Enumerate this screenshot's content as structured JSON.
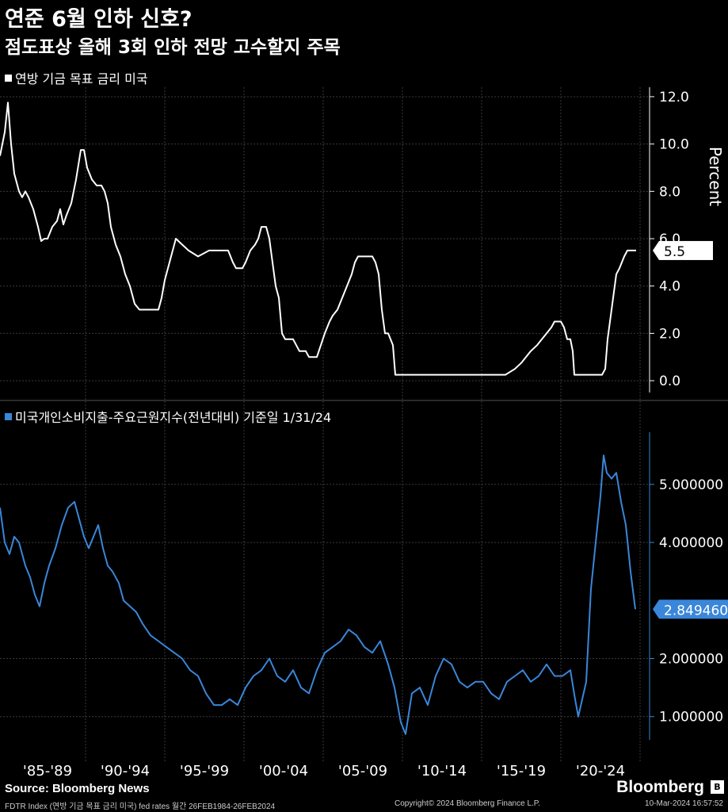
{
  "header": {
    "title": "연준 6월 인하 신호?",
    "subtitle": "점도표상 올해 3회 인하 전망 고수할지 주목"
  },
  "chart_data": [
    {
      "type": "line",
      "legend": "연방 기금 목표 금리 미국",
      "color": "#ffffff",
      "ylabel": "Percent",
      "ylim": [
        -0.5,
        12.4
      ],
      "yticks": [
        "0.0",
        "2.0",
        "4.0",
        "6.0",
        "8.0",
        "10.0",
        "12.0"
      ],
      "last_value_label": "5.5",
      "x": [
        1984.0,
        1984.3,
        1984.5,
        1984.7,
        1984.9,
        1985.0,
        1985.2,
        1985.4,
        1985.6,
        1985.8,
        1986.1,
        1986.4,
        1986.6,
        1986.8,
        1987.0,
        1987.3,
        1987.6,
        1987.8,
        1988.0,
        1988.2,
        1988.5,
        1988.8,
        1989.1,
        1989.3,
        1989.5,
        1989.8,
        1990.1,
        1990.4,
        1990.6,
        1990.8,
        1991.0,
        1991.3,
        1991.6,
        1991.9,
        1992.2,
        1992.5,
        1992.8,
        1993.5,
        1994.0,
        1994.2,
        1994.4,
        1994.6,
        1994.9,
        1995.1,
        1995.5,
        1995.9,
        1996.5,
        1997.2,
        1997.9,
        1998.4,
        1998.7,
        1998.9,
        1999.3,
        1999.5,
        1999.8,
        2000.1,
        2000.3,
        2000.5,
        2000.8,
        2001.0,
        2001.2,
        2001.4,
        2001.6,
        2001.8,
        2002.0,
        2002.5,
        2002.9,
        2003.3,
        2003.5,
        2004.0,
        2004.5,
        2004.8,
        2005.0,
        2005.3,
        2005.6,
        2005.9,
        2006.2,
        2006.4,
        2006.6,
        2007.0,
        2007.5,
        2007.7,
        2007.9,
        2008.1,
        2008.3,
        2008.5,
        2008.8,
        2008.95,
        2009.2,
        2010.5,
        2012.0,
        2014.0,
        2015.9,
        2016.5,
        2016.9,
        2017.2,
        2017.5,
        2017.9,
        2018.2,
        2018.5,
        2018.8,
        2019.0,
        2019.4,
        2019.6,
        2019.8,
        2020.0,
        2020.15,
        2020.25,
        2021.0,
        2021.5,
        2022.0,
        2022.2,
        2022.35,
        2022.5,
        2022.65,
        2022.9,
        2023.1,
        2023.4,
        2023.6,
        2024.0,
        2024.15
      ],
      "values": [
        9.5,
        10.5,
        11.75,
        10.0,
        8.75,
        8.5,
        8.0,
        7.75,
        8.0,
        7.75,
        7.25,
        6.5,
        5.9,
        6.0,
        6.0,
        6.5,
        6.75,
        7.25,
        6.6,
        7.0,
        7.5,
        8.5,
        9.75,
        9.75,
        9.0,
        8.5,
        8.25,
        8.25,
        8.0,
        7.5,
        6.5,
        5.75,
        5.25,
        4.5,
        4.0,
        3.25,
        3.0,
        3.0,
        3.0,
        3.5,
        4.25,
        4.75,
        5.5,
        6.0,
        5.75,
        5.5,
        5.25,
        5.5,
        5.5,
        5.5,
        5.0,
        4.75,
        4.75,
        5.0,
        5.5,
        5.75,
        6.0,
        6.5,
        6.5,
        6.0,
        5.0,
        4.0,
        3.5,
        2.0,
        1.75,
        1.75,
        1.25,
        1.25,
        1.0,
        1.0,
        2.0,
        2.5,
        2.75,
        3.0,
        3.5,
        4.0,
        4.5,
        5.0,
        5.25,
        5.25,
        5.25,
        5.0,
        4.5,
        3.0,
        2.0,
        2.0,
        1.5,
        0.25,
        0.25,
        0.25,
        0.25,
        0.25,
        0.25,
        0.5,
        0.75,
        1.0,
        1.25,
        1.5,
        1.75,
        2.0,
        2.25,
        2.5,
        2.5,
        2.25,
        1.75,
        1.75,
        1.25,
        0.25,
        0.25,
        0.25,
        0.25,
        0.5,
        1.75,
        2.5,
        3.25,
        4.5,
        4.75,
        5.25,
        5.5,
        5.5,
        5.5
      ]
    },
    {
      "type": "line",
      "legend": "미국개인소비지출-주요근원지수(전년대비) 기준일 1/31/24",
      "color": "#3a86d9",
      "ylim": [
        0.6,
        5.9
      ],
      "yticks": [
        "1.000000",
        "2.000000",
        "4.000000",
        "5.000000"
      ],
      "last_value_label": "2.849460",
      "x": [
        1984.0,
        1984.3,
        1984.6,
        1984.9,
        1985.2,
        1985.6,
        1985.9,
        1986.2,
        1986.5,
        1986.8,
        1987.1,
        1987.5,
        1987.9,
        1988.3,
        1988.7,
        1989.0,
        1989.3,
        1989.6,
        1989.9,
        1990.2,
        1990.5,
        1990.8,
        1991.1,
        1991.5,
        1991.8,
        1992.2,
        1992.6,
        1993.0,
        1993.5,
        1994.0,
        1994.5,
        1995.0,
        1995.5,
        1996.0,
        1996.5,
        1997.0,
        1997.5,
        1998.0,
        1998.5,
        1999.0,
        1999.5,
        2000.0,
        2000.5,
        2001.0,
        2001.5,
        2002.0,
        2002.5,
        2003.0,
        2003.5,
        2004.0,
        2004.5,
        2005.0,
        2005.5,
        2006.0,
        2006.5,
        2007.0,
        2007.5,
        2008.0,
        2008.5,
        2008.9,
        2009.3,
        2009.6,
        2010.0,
        2010.5,
        2011.0,
        2011.5,
        2012.0,
        2012.5,
        2013.0,
        2013.5,
        2014.0,
        2014.5,
        2015.0,
        2015.5,
        2016.0,
        2016.5,
        2017.0,
        2017.5,
        2018.0,
        2018.5,
        2019.0,
        2019.5,
        2020.0,
        2020.3,
        2020.5,
        2021.0,
        2021.3,
        2021.6,
        2021.9,
        2022.1,
        2022.3,
        2022.6,
        2022.9,
        2023.2,
        2023.5,
        2023.8,
        2024.1
      ],
      "values": [
        4.6,
        4.0,
        3.8,
        4.1,
        4.0,
        3.6,
        3.4,
        3.1,
        2.9,
        3.3,
        3.6,
        3.9,
        4.3,
        4.6,
        4.7,
        4.4,
        4.1,
        3.9,
        4.1,
        4.3,
        3.9,
        3.6,
        3.5,
        3.3,
        3.0,
        2.9,
        2.8,
        2.6,
        2.4,
        2.3,
        2.2,
        2.1,
        2.0,
        1.8,
        1.7,
        1.4,
        1.2,
        1.2,
        1.3,
        1.2,
        1.5,
        1.7,
        1.8,
        2.0,
        1.7,
        1.6,
        1.8,
        1.5,
        1.4,
        1.8,
        2.1,
        2.2,
        2.3,
        2.5,
        2.4,
        2.2,
        2.1,
        2.3,
        1.9,
        1.5,
        0.9,
        0.7,
        1.4,
        1.5,
        1.2,
        1.7,
        2.0,
        1.9,
        1.6,
        1.5,
        1.6,
        1.6,
        1.4,
        1.3,
        1.6,
        1.7,
        1.8,
        1.6,
        1.7,
        1.9,
        1.7,
        1.7,
        1.8,
        1.3,
        1.0,
        1.6,
        3.2,
        4.0,
        4.8,
        5.5,
        5.2,
        5.1,
        5.2,
        4.7,
        4.3,
        3.5,
        2.85
      ]
    }
  ],
  "x_axis": {
    "xlim": [
      1984.0,
      2025.0
    ],
    "separators": [
      1989.4,
      1994.4,
      1999.4,
      2004.4,
      2009.4,
      2014.4,
      2019.4,
      2024.4
    ],
    "labels": [
      {
        "text": "'85-'89",
        "x": 1987.0
      },
      {
        "text": "'90-'94",
        "x": 1991.9
      },
      {
        "text": "'95-'99",
        "x": 1996.9
      },
      {
        "text": "'00-'04",
        "x": 2001.9
      },
      {
        "text": "'05-'09",
        "x": 2006.9
      },
      {
        "text": "'10-'14",
        "x": 2011.9
      },
      {
        "text": "'15-'19",
        "x": 2016.9
      },
      {
        "text": "'20-'24",
        "x": 2021.9
      }
    ]
  },
  "footer": {
    "source": "Source: Bloomberg News",
    "logo": "Bloomberg",
    "logo_mark": "B",
    "index_info": "FDTR Index (연방 기금 목표 금리 미국) fed rates  월간 26FEB1984-26FEB2024",
    "copyright": "Copyright© 2024 Bloomberg Finance L.P.",
    "timestamp": "10-Mar-2024 16:57:52"
  }
}
